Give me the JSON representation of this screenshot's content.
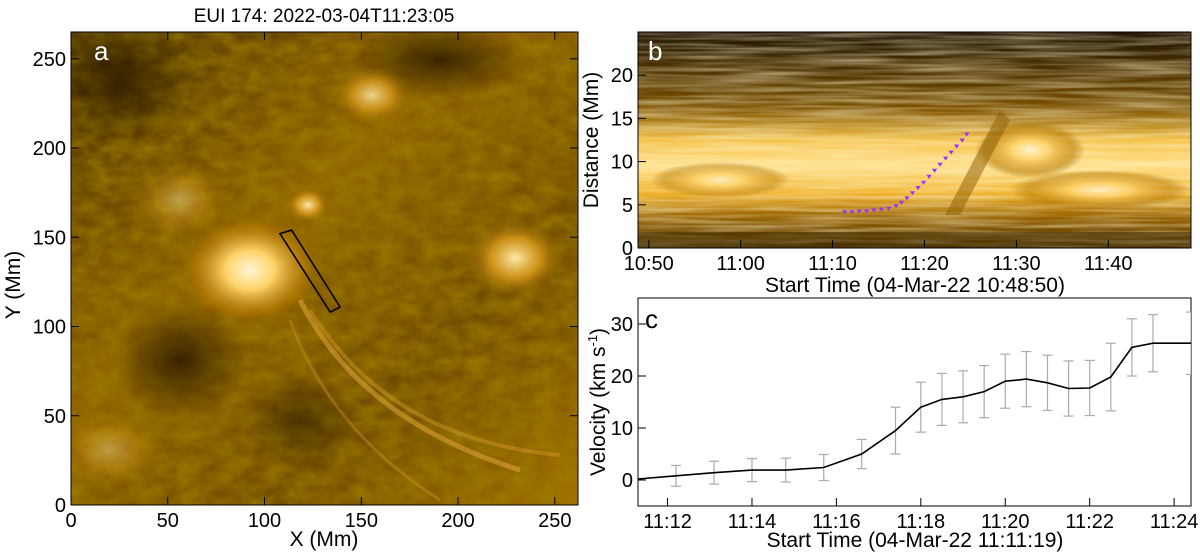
{
  "figure": {
    "colors": {
      "euv_dark": "#1a0f00",
      "euv_mid": "#b07400",
      "euv_bright": "#ffe7a0",
      "axes": "#000000",
      "trace_marker": "#9b30ff",
      "errorbar": "#aaaaaa"
    }
  },
  "chart_data": [
    {
      "panel": "a",
      "type": "heatmap",
      "title": "EUI 174: 2022-03-04T11:23:05",
      "xlabel": "X (Mm)",
      "ylabel": "Y (Mm)",
      "xlim": [
        0,
        262
      ],
      "ylim": [
        0,
        265
      ],
      "xticks": [
        0,
        50,
        100,
        150,
        200,
        250
      ],
      "yticks": [
        0,
        50,
        100,
        150,
        200,
        250
      ],
      "colormap": "sdo_aia_171_gold",
      "slit_box": {
        "corners": [
          [
            108,
            152
          ],
          [
            114,
            154
          ],
          [
            139,
            111
          ],
          [
            134,
            108
          ]
        ]
      }
    },
    {
      "panel": "b",
      "type": "heatmap",
      "xlabel": "Start Time (04-Mar-22 10:48:50)",
      "ylabel": "Distance (Mm)",
      "x_tick_labels": [
        "10:50",
        "11:00",
        "11:10",
        "11:20",
        "11:30",
        "11:40"
      ],
      "x_tick_minutes": [
        50,
        60,
        70,
        80,
        90,
        100
      ],
      "xlim_minutes": [
        48.83,
        109
      ],
      "ylim": [
        0,
        25
      ],
      "yticks": [
        0,
        5,
        10,
        15,
        20
      ],
      "trace": {
        "x_minutes": [
          71.3,
          72.1,
          72.9,
          73.7,
          74.5,
          75.3,
          76.1,
          76.9,
          77.5,
          78.1,
          78.7,
          79.3,
          79.9,
          80.5,
          81.1,
          81.7,
          82.3,
          82.9,
          83.5,
          84.1,
          84.6
        ],
        "distance": [
          4.2,
          4.2,
          4.3,
          4.3,
          4.4,
          4.5,
          4.6,
          4.9,
          5.3,
          5.8,
          6.4,
          7.0,
          7.6,
          8.3,
          9.0,
          9.7,
          10.4,
          11.1,
          11.8,
          12.5,
          13.2
        ]
      }
    },
    {
      "panel": "c",
      "type": "line",
      "xlabel": "Start Time (04-Mar-22 11:11:19)",
      "ylabel": "Velocity (km s-1)",
      "ylabel_main": "Velocity (km s",
      "ylabel_sup": "-1",
      "ylabel_close": ")",
      "x_tick_labels": [
        "11:12",
        "11:14",
        "11:16",
        "11:18",
        "11:20",
        "11:22",
        "11:24"
      ],
      "x_tick_minutes": [
        72,
        74,
        76,
        78,
        80,
        82,
        84
      ],
      "xlim_minutes": [
        71.3,
        84.4
      ],
      "ylim": [
        -5,
        35
      ],
      "yticks": [
        0,
        10,
        20,
        30
      ],
      "series": [
        {
          "x_minutes": [
            71.3,
            72.2,
            73.1,
            74.0,
            74.8,
            75.7,
            76.6,
            77.4,
            78.0,
            78.5,
            79.0,
            79.5,
            80.0,
            80.5,
            81.0,
            81.5,
            82.0,
            82.5,
            83.0,
            83.5,
            84.4
          ],
          "values": [
            0.2,
            0.8,
            1.4,
            1.9,
            1.9,
            2.4,
            5.0,
            9.5,
            14.0,
            15.5,
            16.0,
            17.0,
            19.0,
            19.4,
            18.7,
            17.6,
            17.7,
            19.8,
            25.5,
            26.3,
            26.3
          ],
          "errors": [
            0.0,
            2.0,
            2.2,
            2.2,
            2.3,
            2.5,
            2.8,
            4.5,
            4.8,
            5.0,
            5.0,
            5.0,
            5.2,
            5.3,
            5.3,
            5.3,
            5.3,
            6.5,
            5.5,
            5.5,
            6.0
          ]
        }
      ]
    }
  ]
}
